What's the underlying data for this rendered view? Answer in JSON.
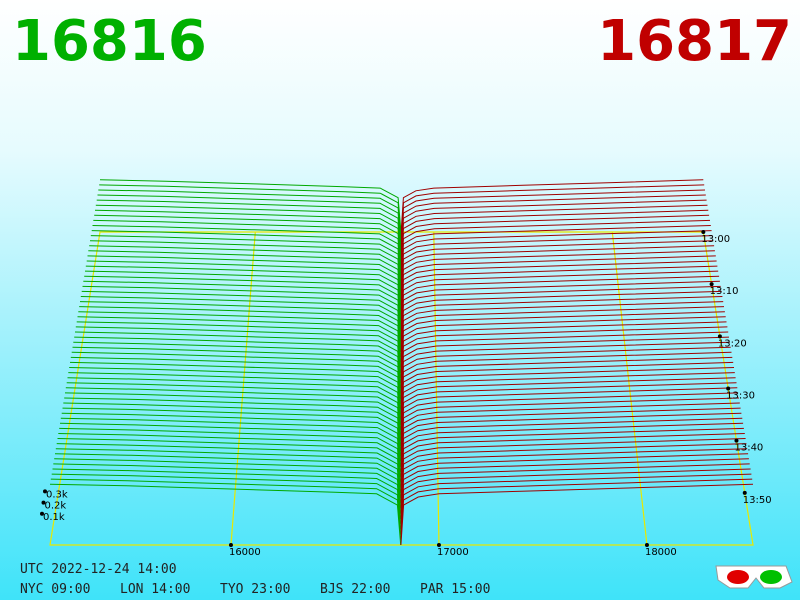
{
  "chart_data": {
    "type": "depth3d",
    "bid": 16816,
    "ask": 16817,
    "bids": {
      "color": "#00a800",
      "x": [
        15130,
        15500,
        16000,
        16500,
        16700,
        16800,
        16816
      ],
      "values": [
        380,
        370,
        350,
        330,
        320,
        250,
        0
      ]
    },
    "asks": {
      "color": "#a00000",
      "x": [
        16817,
        16830,
        16900,
        17000,
        17500,
        18000,
        18510
      ],
      "values": [
        0,
        250,
        300,
        320,
        340,
        360,
        380
      ]
    },
    "xlim": [
      15130,
      18510
    ],
    "xticks": [
      16000,
      17000,
      18000
    ],
    "zticks": [
      {
        "value": 100,
        "label": "0.1k"
      },
      {
        "value": 200,
        "label": "0.2k"
      },
      {
        "value": 300,
        "label": "0.3k"
      }
    ],
    "times": [
      "13:00",
      "13:10",
      "13:20",
      "13:30",
      "13:40",
      "13:50"
    ],
    "grid_color": "#e8e800"
  },
  "clocks": {
    "utc": "UTC 2022-12-24 14:00",
    "cities": [
      "NYC 09:00",
      "LON 14:00",
      "TYO 23:00",
      "BJS 22:00",
      "PAR 15:00"
    ]
  }
}
